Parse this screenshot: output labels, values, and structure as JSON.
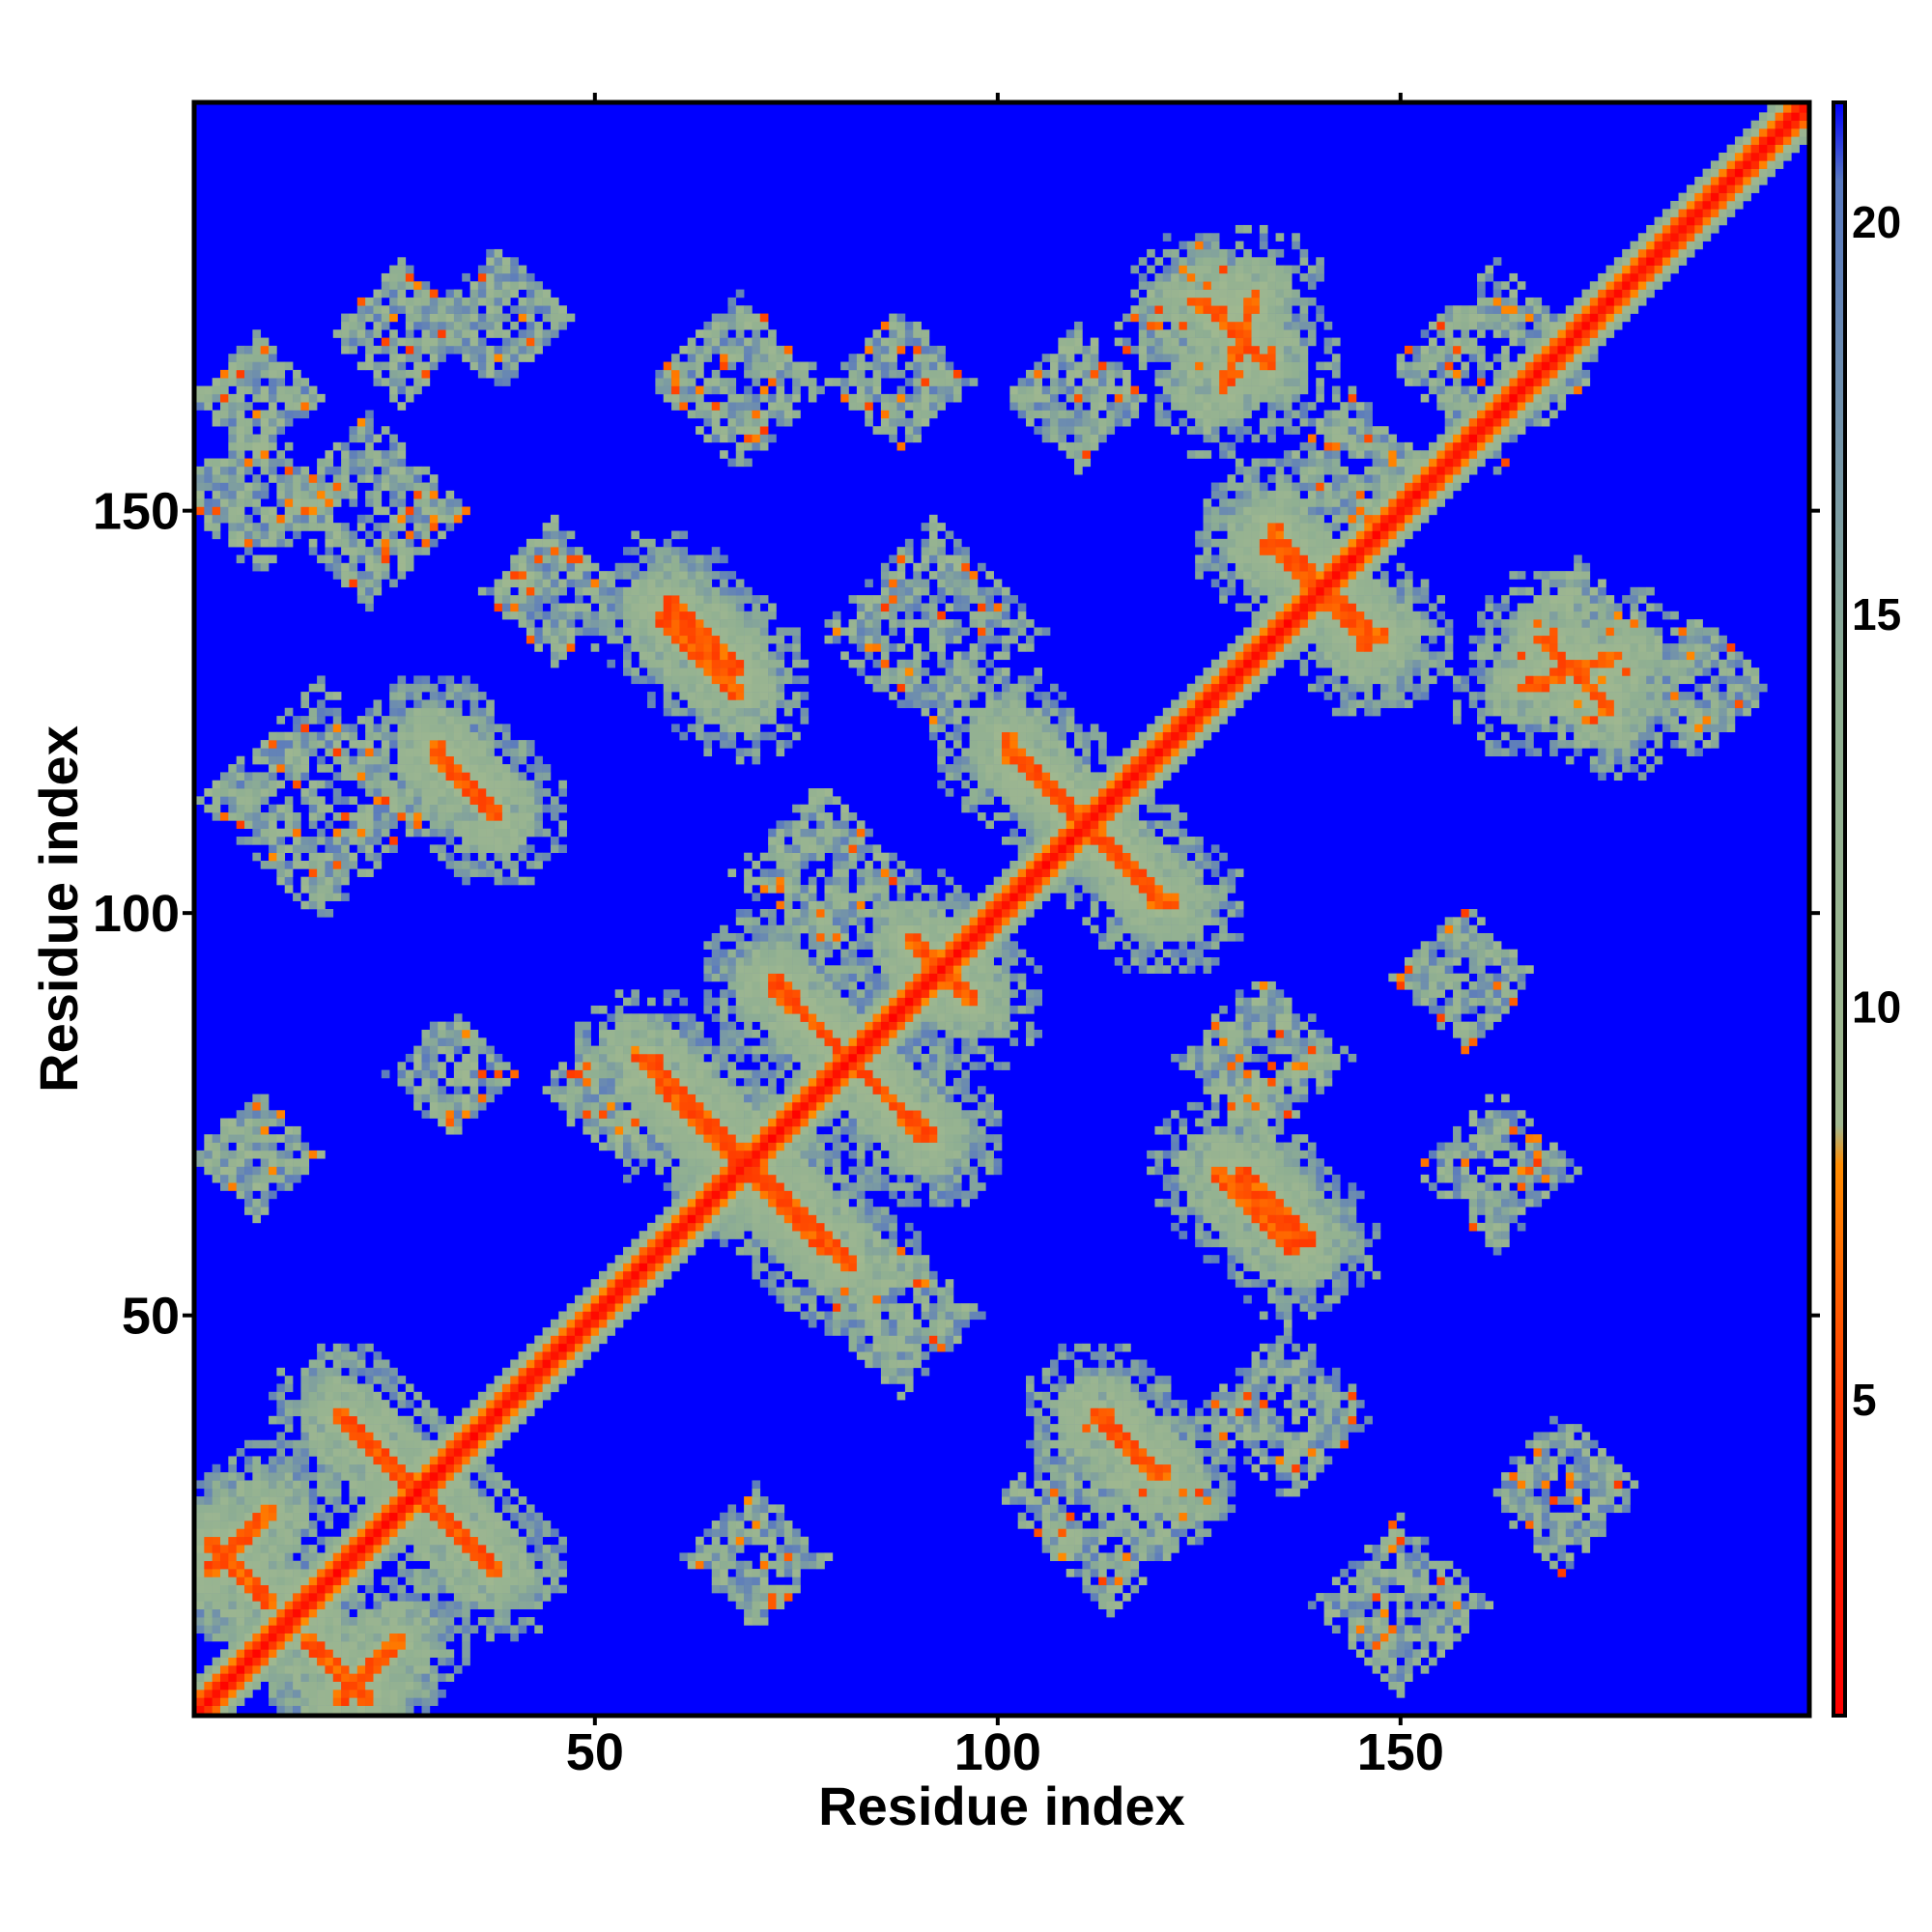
{
  "chart_data": {
    "type": "heatmap",
    "title": "",
    "xlabel": "Residue index",
    "ylabel": "Residue index",
    "n_residues": 200,
    "xlim": [
      1,
      200
    ],
    "ylim": [
      1,
      200
    ],
    "x_ticks": [
      50,
      100,
      150
    ],
    "y_ticks": [
      50,
      100,
      150
    ],
    "colorbar": {
      "ticks": [
        5,
        10,
        15,
        20
      ],
      "range": [
        1,
        21.5
      ],
      "colors": [
        {
          "value": 1,
          "color": "#ff0000"
        },
        {
          "value": 5,
          "color": "#ff3a00"
        },
        {
          "value": 8,
          "color": "#ff8c00"
        },
        {
          "value": 8.5,
          "color": "#a0b890"
        },
        {
          "value": 14,
          "color": "#8faf92"
        },
        {
          "value": 20.5,
          "color": "#5878c0"
        },
        {
          "value": 21.5,
          "color": "#0000ff"
        }
      ]
    },
    "background_value": 21.5,
    "diagonal_value": 1,
    "contact_segments": [
      {
        "from": [
          2,
          22
        ],
        "to": [
          10,
          14
        ]
      },
      {
        "from": [
          18,
          38
        ],
        "to": [
          37,
          19
        ]
      },
      {
        "from": [
          18,
          2
        ],
        "to": [
          26,
          10
        ]
      },
      {
        "from": [
          56,
          82
        ],
        "to": [
          70,
          68
        ]
      },
      {
        "from": [
          72,
          91
        ],
        "to": [
          92,
          72
        ]
      },
      {
        "from": [
          69,
          68
        ],
        "to": [
          79,
          58
        ]
      },
      {
        "from": [
          59,
          139
        ],
        "to": [
          68,
          130
        ]
      },
      {
        "from": [
          30,
          120
        ],
        "to": [
          38,
          112
        ]
      },
      {
        "from": [
          101,
          120
        ],
        "to": [
          122,
          101
        ]
      },
      {
        "from": [
          91,
          95
        ],
        "to": [
          97,
          89
        ]
      },
      {
        "from": [
          127,
          68
        ],
        "to": [
          137,
          58
        ]
      },
      {
        "from": [
          112,
          38
        ],
        "to": [
          121,
          30
        ]
      },
      {
        "from": [
          133,
          146
        ],
        "to": [
          148,
          134
        ]
      },
      {
        "from": [
          165,
          128
        ],
        "to": [
          177,
          132
        ]
      },
      {
        "from": [
          125,
          176
        ],
        "to": [
          134,
          168
        ]
      }
    ],
    "contact_patches": [
      {
        "center": [
          16,
          114
        ],
        "radius": 13
      },
      {
        "center": [
          92,
          135
        ],
        "radius": 12
      },
      {
        "center": [
          114,
          27
        ],
        "radius": 12
      },
      {
        "center": [
          126,
          172
        ],
        "radius": 10
      },
      {
        "center": [
          162,
          168
        ],
        "radius": 11
      },
      {
        "center": [
          172,
          132
        ],
        "radius": 10
      },
      {
        "center": [
          187,
          128
        ],
        "radius": 7
      },
      {
        "center": [
          22,
          150
        ],
        "radius": 10
      },
      {
        "center": [
          8,
          152
        ],
        "radius": 8
      },
      {
        "center": [
          54,
          78
        ],
        "radius": 9
      },
      {
        "center": [
          88,
          50
        ],
        "radius": 8
      },
      {
        "center": [
          78,
          105
        ],
        "radius": 9
      },
      {
        "center": [
          133,
          82
        ],
        "radius": 9
      },
      {
        "center": [
          158,
          92
        ],
        "radius": 7
      },
      {
        "center": [
          162,
          68
        ],
        "radius": 8
      },
      {
        "center": [
          170,
          28
        ],
        "radius": 8
      },
      {
        "center": [
          136,
          38
        ],
        "radius": 9
      },
      {
        "center": [
          150,
          14
        ],
        "radius": 9
      },
      {
        "center": [
          68,
          166
        ],
        "radius": 9
      },
      {
        "center": [
          88,
          166
        ],
        "radius": 7
      },
      {
        "center": [
          26,
          172
        ],
        "radius": 7
      },
      {
        "center": [
          38,
          174
        ],
        "radius": 7
      },
      {
        "center": [
          110,
          164
        ],
        "radius": 7
      },
      {
        "center": [
          8,
          164
        ],
        "radius": 6
      },
      {
        "center": [
          8,
          70
        ],
        "radius": 6
      },
      {
        "center": [
          70,
          20
        ],
        "radius": 7
      },
      {
        "center": [
          32,
          80
        ],
        "radius": 6
      },
      {
        "center": [
          45,
          140
        ],
        "radius": 7
      },
      {
        "center": [
          144,
          156
        ],
        "radius": 7
      }
    ]
  }
}
